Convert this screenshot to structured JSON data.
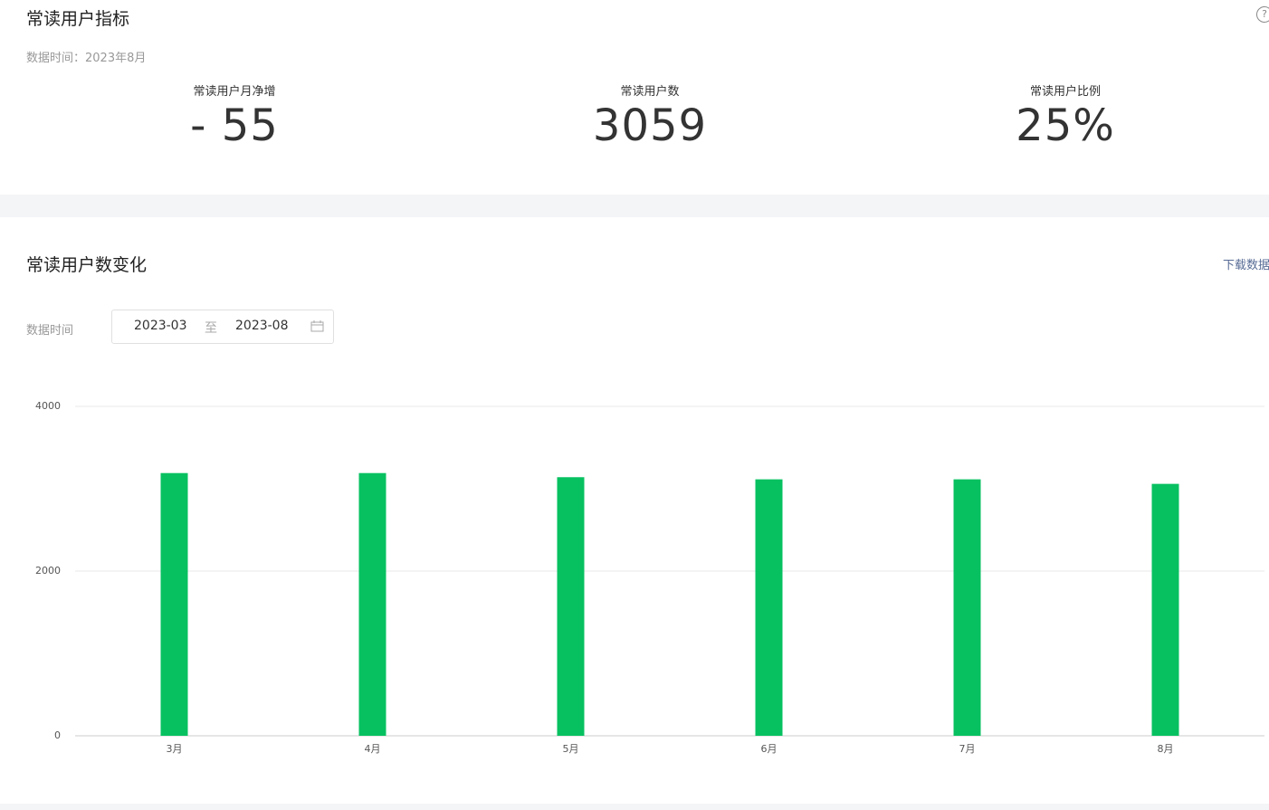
{
  "metrics_panel": {
    "title": "常读用户指标",
    "help_icon": "?",
    "data_time": "数据时间：2023年8月",
    "metrics": [
      {
        "label": "常读用户月净增",
        "value": "- 55"
      },
      {
        "label": "常读用户数",
        "value": "3059"
      },
      {
        "label": "常读用户比例",
        "value": "25%"
      }
    ]
  },
  "trend_panel": {
    "title": "常读用户数变化",
    "download": "下载数据",
    "date_label": "数据时间",
    "date_start": "2023-03",
    "date_sep": "至",
    "date_end": "2023-08"
  },
  "chart_data": {
    "type": "bar",
    "categories": [
      "3月",
      "4月",
      "5月",
      "6月",
      "7月",
      "8月"
    ],
    "values": [
      3190,
      3190,
      3140,
      3114,
      3114,
      3059
    ],
    "color": "#07c160",
    "ylim": [
      0,
      4000
    ],
    "yticks": [
      0,
      2000,
      4000
    ],
    "grid": true
  }
}
